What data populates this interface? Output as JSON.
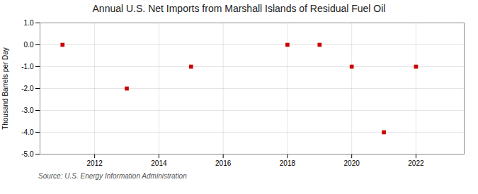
{
  "chart_data": {
    "type": "scatter",
    "title": "Annual U.S. Net Imports from Marshall Islands of Residual Fuel Oil",
    "y_label": "Thousand Barrels per Day",
    "annotations": [
      "Source: U.S. Energy Information Administration"
    ],
    "x": [
      2011,
      2013,
      2015,
      2018,
      2019,
      2020,
      2021,
      2022
    ],
    "values": [
      0,
      -2,
      -1,
      0,
      0,
      -1,
      -4,
      -1
    ],
    "color": "#cc0000",
    "marker": "square",
    "xlim": [
      2010.3,
      2023.5
    ],
    "xticks": [
      2012,
      2014,
      2016,
      2018,
      2020,
      2022
    ],
    "ylim": [
      -5.0,
      1.0
    ],
    "yticks": [
      {
        "value": 1.0,
        "label": "1.0"
      },
      {
        "value": 0.0,
        "label": "0.0"
      },
      {
        "value": -1.0,
        "label": "-1.0"
      },
      {
        "value": -2.0,
        "label": "-2.0"
      },
      {
        "value": -3.0,
        "label": "-3.0"
      },
      {
        "value": -4.0,
        "label": "-4.0"
      },
      {
        "value": -5.0,
        "label": "-5.0"
      }
    ],
    "grid": true
  }
}
